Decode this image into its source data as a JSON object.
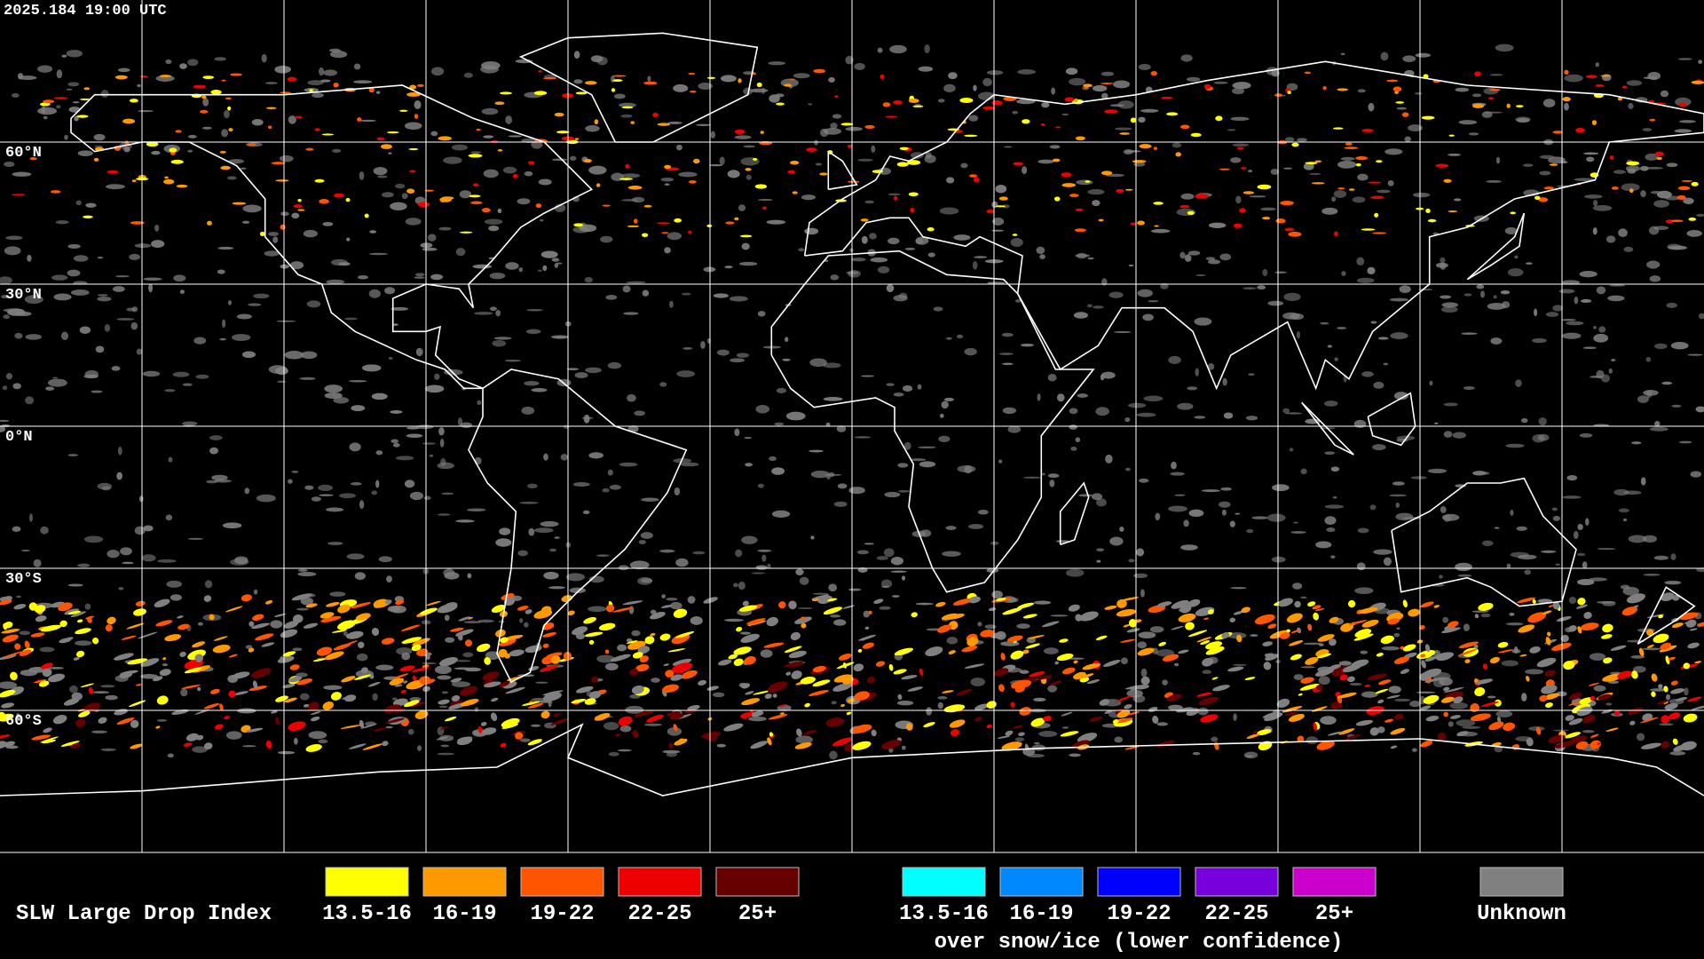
{
  "timestamp": "2025.184 19:00 UTC",
  "latitude_labels": [
    "60°N",
    "30°N",
    "0°N",
    "30°S",
    "60°S"
  ],
  "legend": {
    "title": "SLW Large Drop Index",
    "items": [
      {
        "label": "13.5-16",
        "color": "#ffff00"
      },
      {
        "label": "16-19",
        "color": "#ff9900"
      },
      {
        "label": "19-22",
        "color": "#ff5500"
      },
      {
        "label": "22-25",
        "color": "#ee0000"
      },
      {
        "label": "25+",
        "color": "#660000"
      }
    ],
    "snow_ice_items": [
      {
        "label": "13.5-16",
        "color": "#00ffff"
      },
      {
        "label": "16-19",
        "color": "#0088ff"
      },
      {
        "label": "19-22",
        "color": "#0000ff"
      },
      {
        "label": "22-25",
        "color": "#7700dd"
      },
      {
        "label": "25+",
        "color": "#cc00cc"
      }
    ],
    "snow_ice_caption": "over snow/ice (lower confidence)",
    "unknown": {
      "label": "Unknown",
      "color": "#808080"
    }
  }
}
